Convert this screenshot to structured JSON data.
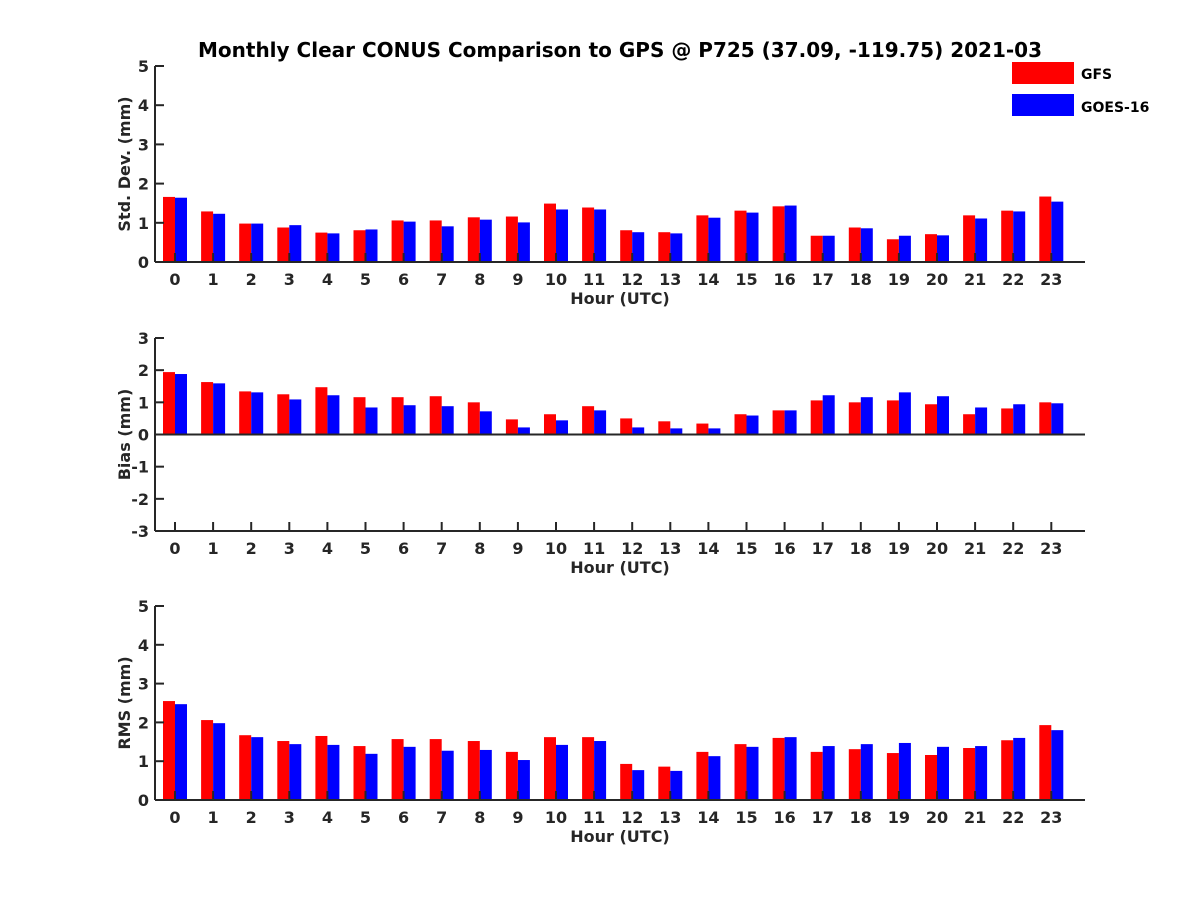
{
  "title": "Monthly Clear CONUS Comparison to GPS @ P725 (37.09, -119.75) 2021-03",
  "legend": [
    {
      "name": "GFS",
      "color": "#ff0000"
    },
    {
      "name": "GOES-16",
      "color": "#0000ff"
    }
  ],
  "chart_data": [
    {
      "type": "bar",
      "xlabel": "Hour (UTC)",
      "ylabel": "Std. Dev. (mm)",
      "ylim": [
        0,
        5
      ],
      "yticks": [
        0,
        1,
        2,
        3,
        4,
        5
      ],
      "categories": [
        "0",
        "1",
        "2",
        "3",
        "4",
        "5",
        "6",
        "7",
        "8",
        "9",
        "10",
        "11",
        "12",
        "13",
        "14",
        "15",
        "16",
        "17",
        "18",
        "19",
        "20",
        "21",
        "22",
        "23"
      ],
      "series": [
        {
          "name": "GFS",
          "color": "#ff0000",
          "values": [
            1.66,
            1.29,
            0.98,
            0.88,
            0.75,
            0.81,
            1.06,
            1.06,
            1.14,
            1.16,
            1.49,
            1.39,
            0.81,
            0.76,
            1.19,
            1.31,
            1.42,
            0.67,
            0.88,
            0.58,
            0.71,
            1.19,
            1.31,
            1.67
          ]
        },
        {
          "name": "GOES-16",
          "color": "#0000ff",
          "values": [
            1.64,
            1.23,
            0.98,
            0.94,
            0.73,
            0.83,
            1.03,
            0.91,
            1.08,
            1.01,
            1.34,
            1.34,
            0.76,
            0.73,
            1.13,
            1.26,
            1.44,
            0.67,
            0.86,
            0.67,
            0.68,
            1.11,
            1.29,
            1.54
          ]
        }
      ]
    },
    {
      "type": "bar",
      "xlabel": "Hour (UTC)",
      "ylabel": "Bias (mm)",
      "ylim": [
        -3,
        3
      ],
      "yticks": [
        -3,
        -2,
        -1,
        0,
        1,
        2,
        3
      ],
      "categories": [
        "0",
        "1",
        "2",
        "3",
        "4",
        "5",
        "6",
        "7",
        "8",
        "9",
        "10",
        "11",
        "12",
        "13",
        "14",
        "15",
        "16",
        "17",
        "18",
        "19",
        "20",
        "21",
        "22",
        "23"
      ],
      "series": [
        {
          "name": "GFS",
          "color": "#ff0000",
          "values": [
            1.94,
            1.63,
            1.34,
            1.25,
            1.47,
            1.16,
            1.16,
            1.19,
            1.0,
            0.47,
            0.63,
            0.88,
            0.5,
            0.41,
            0.34,
            0.63,
            0.75,
            1.06,
            1.0,
            1.06,
            0.94,
            0.63,
            0.81,
            1.0
          ]
        },
        {
          "name": "GOES-16",
          "color": "#0000ff",
          "values": [
            1.88,
            1.59,
            1.31,
            1.09,
            1.22,
            0.84,
            0.91,
            0.88,
            0.72,
            0.22,
            0.44,
            0.75,
            0.22,
            0.19,
            0.19,
            0.59,
            0.75,
            1.22,
            1.16,
            1.31,
            1.19,
            0.84,
            0.94,
            0.97
          ]
        }
      ]
    },
    {
      "type": "bar",
      "xlabel": "Hour (UTC)",
      "ylabel": "RMS (mm)",
      "ylim": [
        0,
        5
      ],
      "yticks": [
        0,
        1,
        2,
        3,
        4,
        5
      ],
      "categories": [
        "0",
        "1",
        "2",
        "3",
        "4",
        "5",
        "6",
        "7",
        "8",
        "9",
        "10",
        "11",
        "12",
        "13",
        "14",
        "15",
        "16",
        "17",
        "18",
        "19",
        "20",
        "21",
        "22",
        "23"
      ],
      "series": [
        {
          "name": "GFS",
          "color": "#ff0000",
          "values": [
            2.55,
            2.06,
            1.67,
            1.52,
            1.65,
            1.39,
            1.57,
            1.57,
            1.52,
            1.24,
            1.62,
            1.62,
            0.93,
            0.86,
            1.24,
            1.44,
            1.6,
            1.24,
            1.31,
            1.21,
            1.16,
            1.34,
            1.54,
            1.93
          ]
        },
        {
          "name": "GOES-16",
          "color": "#0000ff",
          "values": [
            2.47,
            1.98,
            1.62,
            1.44,
            1.42,
            1.19,
            1.37,
            1.27,
            1.29,
            1.03,
            1.42,
            1.52,
            0.77,
            0.75,
            1.13,
            1.37,
            1.62,
            1.39,
            1.44,
            1.47,
            1.37,
            1.39,
            1.6,
            1.8
          ]
        }
      ]
    }
  ]
}
